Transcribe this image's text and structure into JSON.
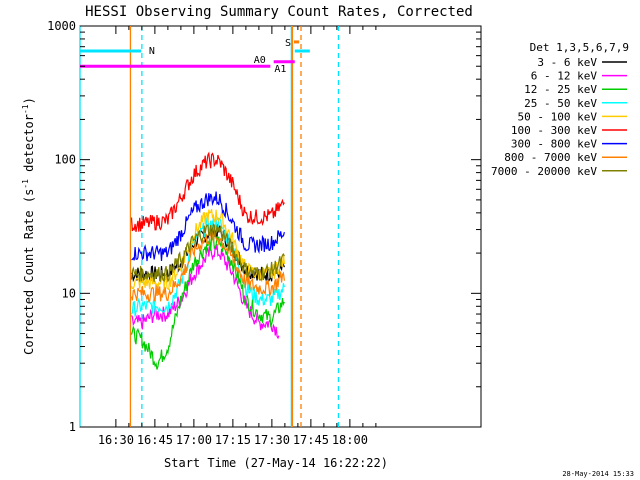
{
  "chart_data": {
    "type": "line",
    "title": "HESSI Observing Summary Count Rates, Corrected",
    "xlabel": "Start Time (27-May-14 16:22:22)",
    "ylabel_main": "Corrected Count Rate (s",
    "ylabel_sup1": "-1",
    "ylabel_mid": " detector",
    "ylabel_sup2": "-1",
    "ylabel_end": ")",
    "yscale": "log",
    "ylim": [
      1,
      1000
    ],
    "xlim_minutes": [
      16.2,
      98.8
    ],
    "x_ticks": [
      {
        "m": 30,
        "label": "16:30"
      },
      {
        "m": 45,
        "label": "16:45"
      },
      {
        "m": 60,
        "label": "17:00"
      },
      {
        "m": 75,
        "label": "17:15"
      },
      {
        "m": 90,
        "label": "17:30"
      },
      {
        "m": 105,
        "label": "17:45"
      },
      {
        "m": 120,
        "label": "18:00"
      }
    ],
    "y_ticks": [
      {
        "v": 1,
        "label": "1"
      },
      {
        "v": 10,
        "label": "10"
      },
      {
        "v": 100,
        "label": "100"
      },
      {
        "v": 1000,
        "label": "1000"
      }
    ],
    "legend_title": "Det 1,3,5,6,7,9",
    "legend_position": "right",
    "timestamp": "28-May-2014 15:33",
    "series": [
      {
        "name": "3 - 6 keV",
        "color": "#000000",
        "points": [
          [
            36,
            14
          ],
          [
            40,
            14
          ],
          [
            50,
            14
          ],
          [
            55,
            17
          ],
          [
            60,
            24
          ],
          [
            65,
            28
          ],
          [
            70,
            29
          ],
          [
            75,
            22
          ],
          [
            80,
            15
          ],
          [
            86,
            14
          ],
          [
            92,
            14
          ],
          [
            95,
            16
          ]
        ]
      },
      {
        "name": "6 - 12 keV",
        "color": "#ff00ff",
        "points": [
          [
            36,
            6
          ],
          [
            40,
            6
          ],
          [
            45,
            7
          ],
          [
            50,
            7
          ],
          [
            55,
            9
          ],
          [
            60,
            14
          ],
          [
            65,
            19
          ],
          [
            68,
            21
          ],
          [
            70,
            20
          ],
          [
            75,
            14
          ],
          [
            80,
            8
          ],
          [
            85,
            6
          ],
          [
            90,
            6
          ],
          [
            93,
            5
          ]
        ]
      },
      {
        "name": "12 - 25 keV",
        "color": "#00cc00",
        "points": [
          [
            36,
            5
          ],
          [
            40,
            4.5
          ],
          [
            46,
            3
          ],
          [
            50,
            4
          ],
          [
            55,
            9
          ],
          [
            60,
            17
          ],
          [
            65,
            23
          ],
          [
            70,
            24
          ],
          [
            75,
            17
          ],
          [
            80,
            9
          ],
          [
            85,
            7
          ],
          [
            90,
            6.5
          ],
          [
            95,
            9
          ]
        ]
      },
      {
        "name": "25 - 50 keV",
        "color": "#00ffff",
        "points": [
          [
            36,
            7.5
          ],
          [
            40,
            8
          ],
          [
            50,
            8
          ],
          [
            55,
            12
          ],
          [
            60,
            24
          ],
          [
            65,
            32
          ],
          [
            70,
            33
          ],
          [
            75,
            22
          ],
          [
            80,
            11
          ],
          [
            85,
            9
          ],
          [
            90,
            9
          ],
          [
            95,
            11
          ]
        ]
      },
      {
        "name": "50 - 100 keV",
        "color": "#ffcc00",
        "points": [
          [
            36,
            12
          ],
          [
            40,
            12
          ],
          [
            50,
            12
          ],
          [
            55,
            16
          ],
          [
            60,
            28
          ],
          [
            65,
            38
          ],
          [
            70,
            38
          ],
          [
            75,
            25
          ],
          [
            80,
            15
          ],
          [
            85,
            14
          ],
          [
            90,
            14
          ],
          [
            95,
            18
          ]
        ]
      },
      {
        "name": "100 - 300 keV",
        "color": "#ff0000",
        "points": [
          [
            36,
            33
          ],
          [
            40,
            33
          ],
          [
            50,
            35
          ],
          [
            55,
            52
          ],
          [
            60,
            78
          ],
          [
            65,
            97
          ],
          [
            68,
            100
          ],
          [
            70,
            96
          ],
          [
            75,
            65
          ],
          [
            80,
            38
          ],
          [
            85,
            37
          ],
          [
            90,
            38
          ],
          [
            95,
            48
          ]
        ]
      },
      {
        "name": "300 - 800 keV",
        "color": "#0000ff",
        "points": [
          [
            36,
            20
          ],
          [
            40,
            20
          ],
          [
            50,
            20
          ],
          [
            55,
            28
          ],
          [
            60,
            42
          ],
          [
            65,
            51
          ],
          [
            68,
            52
          ],
          [
            70,
            50
          ],
          [
            75,
            34
          ],
          [
            80,
            23
          ],
          [
            85,
            23
          ],
          [
            90,
            24
          ],
          [
            95,
            29
          ]
        ]
      },
      {
        "name": "800 - 7000 keV",
        "color": "#ff8000",
        "points": [
          [
            36,
            10
          ],
          [
            40,
            10
          ],
          [
            50,
            10
          ],
          [
            55,
            13
          ],
          [
            60,
            21
          ],
          [
            65,
            26
          ],
          [
            70,
            26
          ],
          [
            75,
            18
          ],
          [
            80,
            12
          ],
          [
            85,
            11
          ],
          [
            90,
            11
          ],
          [
            95,
            14
          ]
        ]
      },
      {
        "name": "7000 - 20000 keV",
        "color": "#808000",
        "points": [
          [
            36,
            14
          ],
          [
            40,
            14
          ],
          [
            50,
            14
          ],
          [
            55,
            18
          ],
          [
            60,
            25
          ],
          [
            65,
            30
          ],
          [
            70,
            30
          ],
          [
            75,
            21
          ],
          [
            80,
            15
          ],
          [
            85,
            14
          ],
          [
            90,
            15
          ],
          [
            95,
            18
          ]
        ]
      }
    ],
    "flags": [
      {
        "label": "N",
        "color": "#00e5ff",
        "y": 650,
        "segments": [
          [
            16.2,
            39.7
          ],
          [
            104.6,
            98.8
          ]
        ]
      },
      {
        "label": "A0",
        "color": "#ff00ff",
        "y": 540,
        "segments": [
          [
            90.7,
            98.8
          ]
        ]
      },
      {
        "label": "A1",
        "color": "#ff00ff",
        "y": 500,
        "segments": [
          [
            16.2,
            89.4
          ]
        ]
      },
      {
        "label": "S",
        "color": "#ff8000",
        "y": 760,
        "segments": [
          [
            98.5,
            100.5
          ]
        ]
      }
    ],
    "vlines": [
      {
        "m": 16.2,
        "color": "#00e5ff",
        "style": "solid"
      },
      {
        "m": 40,
        "color": "#00e5ff",
        "style": "dashed"
      },
      {
        "m": 35.6,
        "color": "#ff8000",
        "style": "solid"
      },
      {
        "m": 97.5,
        "color": "#00e5ff",
        "style": "solid"
      },
      {
        "m": 97.9,
        "color": "#ff8000",
        "style": "solid"
      },
      {
        "m": 101.2,
        "color": "#ff8000",
        "style": "dashed"
      },
      {
        "m": 115.6,
        "color": "#00e5ff",
        "style": "dashed"
      }
    ]
  }
}
